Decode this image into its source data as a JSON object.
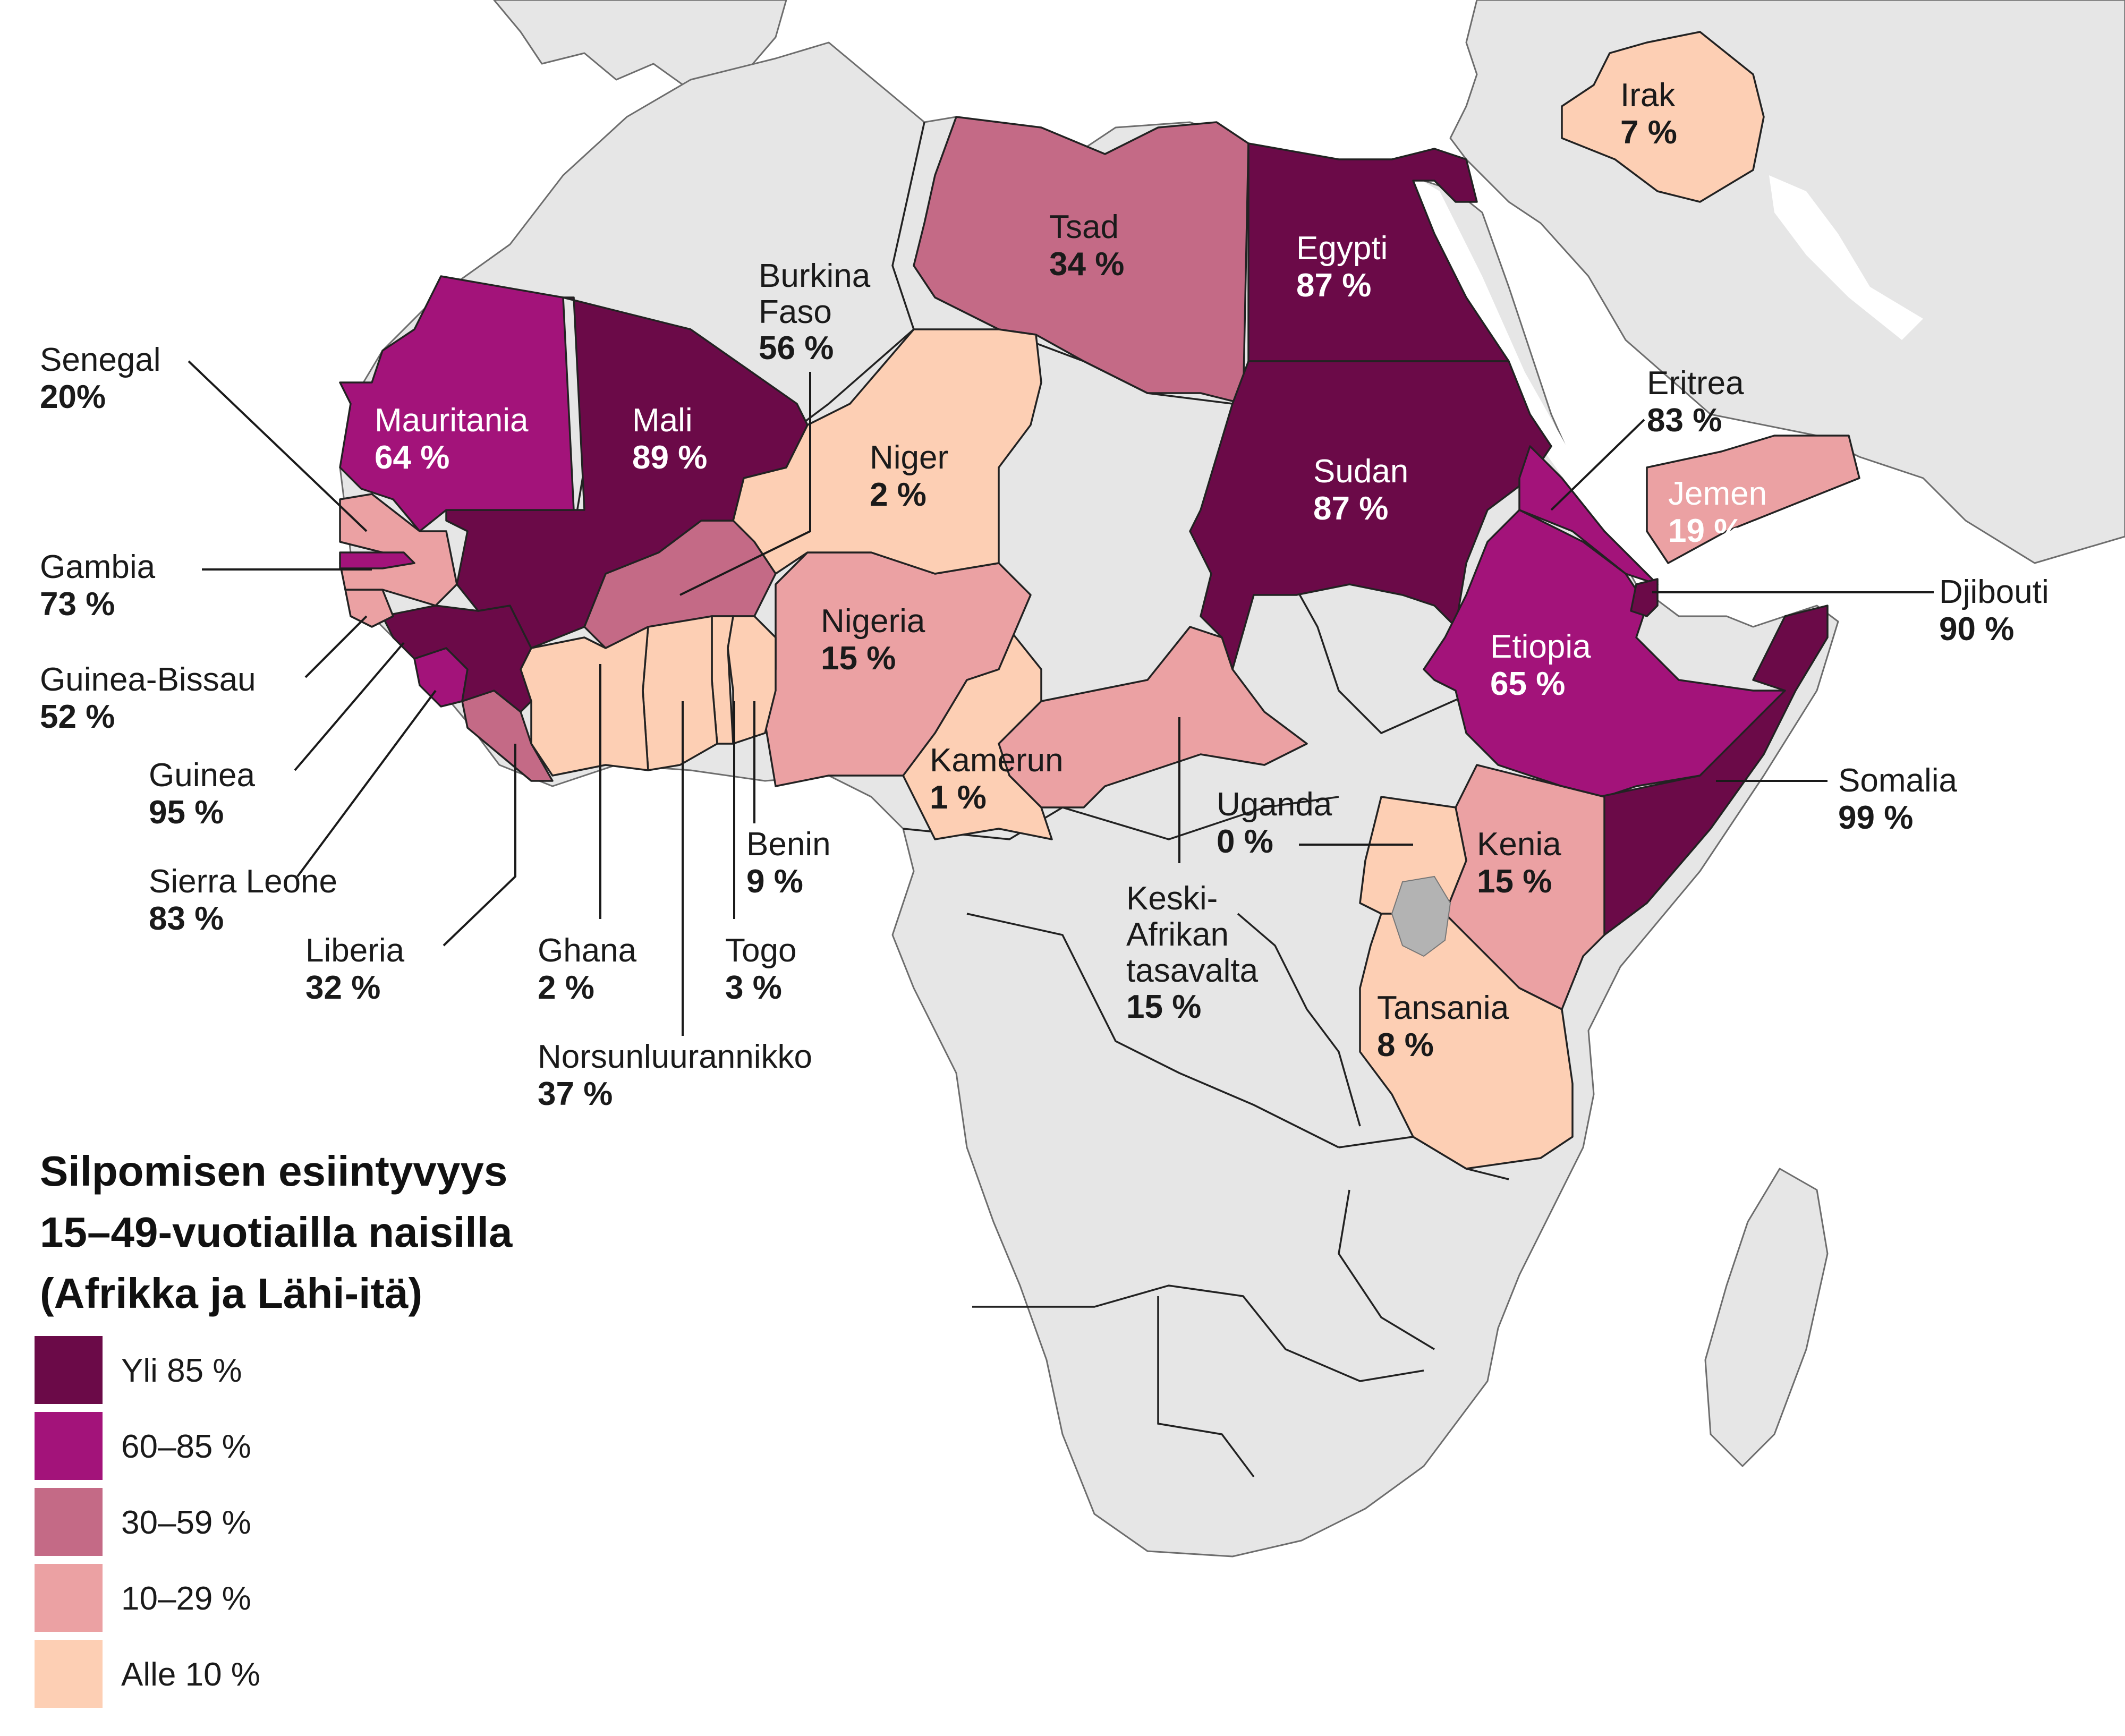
{
  "title": [
    "Silpomisen esiintyvyys",
    "15–49-vuotiailla naisilla",
    "(Afrikka ja Lähi-itä)"
  ],
  "legend": [
    {
      "label": "Yli 85 %",
      "color": "#6b0a48"
    },
    {
      "label": "60–85 %",
      "color": "#a3137a"
    },
    {
      "label": "30–59 %",
      "color": "#c46a86"
    },
    {
      "label": "10–29 %",
      "color": "#eba1a3"
    },
    {
      "label": "Alle 10 %",
      "color": "#fdcfb4"
    }
  ],
  "countries": {
    "senegal": {
      "name": "Senegal",
      "value": "20%"
    },
    "gambia": {
      "name": "Gambia",
      "value": "73 %"
    },
    "guinea_bissau": {
      "name": "Guinea-Bissau",
      "value": "52 %"
    },
    "guinea": {
      "name": "Guinea",
      "value": "95 %"
    },
    "sierra_leone": {
      "name": "Sierra Leone",
      "value": "83 %"
    },
    "liberia": {
      "name": "Liberia",
      "value": "32 %"
    },
    "ghana": {
      "name": "Ghana",
      "value": "2 %"
    },
    "ivory_coast": {
      "name": "Norsunluurannikko",
      "value": "37 %"
    },
    "togo": {
      "name": "Togo",
      "value": "3 %"
    },
    "benin": {
      "name": "Benin",
      "value": "9 %"
    },
    "burkina_faso": {
      "name1": "Burkina",
      "name2": "Faso",
      "value": "56 %"
    },
    "mauritania": {
      "name": "Mauritania",
      "value": "64 %"
    },
    "mali": {
      "name": "Mali",
      "value": "89 %"
    },
    "niger": {
      "name": "Niger",
      "value": "2 %"
    },
    "nigeria": {
      "name": "Nigeria",
      "value": "15 %"
    },
    "cameroon": {
      "name": "Kamerun",
      "value": "1 %"
    },
    "chad": {
      "name": "Tsad",
      "value": "34 %"
    },
    "egypt": {
      "name": "Egypti",
      "value": "87 %"
    },
    "sudan": {
      "name": "Sudan",
      "value": "87 %"
    },
    "car": {
      "name1": "Keski-",
      "name2": "Afrikan",
      "name3": "tasavalta",
      "value": "15 %"
    },
    "uganda": {
      "name": "Uganda",
      "value": "0 %"
    },
    "kenya": {
      "name": "Kenia",
      "value": "15 %"
    },
    "tanzania": {
      "name": "Tansania",
      "value": "8 %"
    },
    "ethiopia": {
      "name": "Etiopia",
      "value": "65 %"
    },
    "eritrea": {
      "name": "Eritrea",
      "value": "83 %"
    },
    "djibouti": {
      "name": "Djibouti",
      "value": "90 %"
    },
    "somalia": {
      "name": "Somalia",
      "value": "99 %"
    },
    "yemen": {
      "name": "Jemen",
      "value": "19 %"
    },
    "iraq": {
      "name": "Irak",
      "value": "7 %"
    }
  }
}
